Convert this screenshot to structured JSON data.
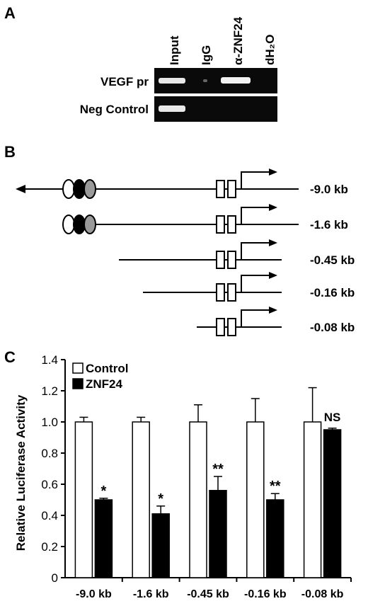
{
  "panel_a": {
    "letter": "A",
    "lane_labels": [
      "Input",
      "IgG",
      "α-ZNF24",
      "dH₂O"
    ],
    "row_labels": [
      "VEGF pr",
      "Neg Control"
    ]
  },
  "panel_b": {
    "letter": "B",
    "constructs": [
      "-9.0 kb",
      "-1.6 kb",
      "-0.45 kb",
      "-0.16 kb",
      "-0.08 kb"
    ]
  },
  "panel_c": {
    "letter": "C"
  },
  "chart_data": {
    "type": "bar",
    "ylabel": "Relative Luciferase Activity",
    "xlabel": "",
    "title": "",
    "ylim": [
      0,
      1.4
    ],
    "yticks": [
      "0",
      "0.2",
      "0.4",
      "0.6",
      "0.8",
      "1.0",
      "1.2",
      "1.4"
    ],
    "categories": [
      "-9.0 kb",
      "-1.6 kb",
      "-0.45 kb",
      "-0.16 kb",
      "-0.08 kb"
    ],
    "series": [
      {
        "name": "Control",
        "values": [
          1.0,
          1.0,
          1.0,
          1.0,
          1.0
        ],
        "errors": [
          0.03,
          0.03,
          0.11,
          0.15,
          0.22
        ],
        "color": "#ffffff"
      },
      {
        "name": "ZNF24",
        "values": [
          0.5,
          0.41,
          0.56,
          0.5,
          0.95
        ],
        "errors": [
          0.01,
          0.05,
          0.09,
          0.04,
          0.01
        ],
        "color": "#000000"
      }
    ],
    "annotations": [
      "*",
      "*",
      "**",
      "**",
      "NS"
    ],
    "legend_position": "top-left"
  }
}
